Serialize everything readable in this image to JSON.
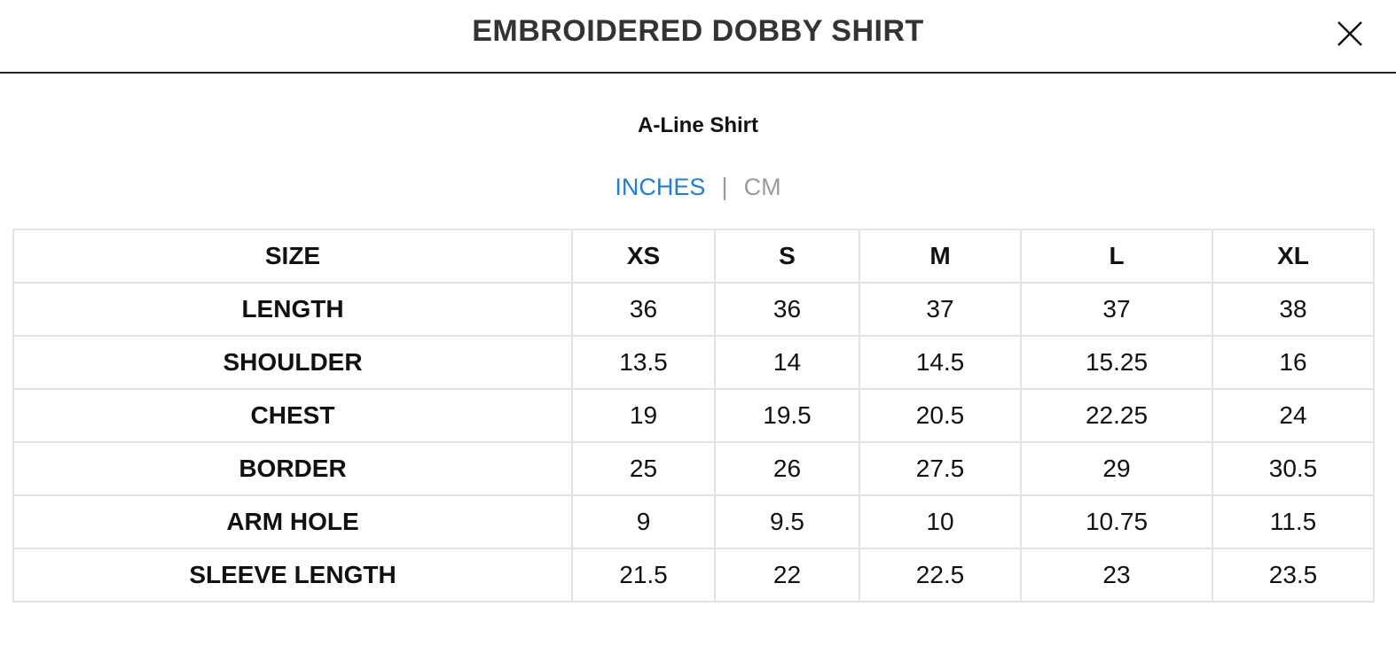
{
  "header": {
    "title": "EMBROIDERED DOBBY SHIRT",
    "close_icon": "close-icon"
  },
  "subtitle": "A-Line Shirt",
  "units": {
    "active": "INCHES",
    "separator": "|",
    "inactive": "CM",
    "active_color": "#1a7fe0",
    "inactive_color": "#9a9a9a"
  },
  "table": {
    "headers": [
      "SIZE",
      "XS",
      "S",
      "M",
      "L",
      "XL"
    ],
    "rows": [
      {
        "label": "LENGTH",
        "values": [
          "36",
          "36",
          "37",
          "37",
          "38"
        ]
      },
      {
        "label": "SHOULDER",
        "values": [
          "13.5",
          "14",
          "14.5",
          "15.25",
          "16"
        ]
      },
      {
        "label": "CHEST",
        "values": [
          "19",
          "19.5",
          "20.5",
          "22.25",
          "24"
        ]
      },
      {
        "label": "BORDER",
        "values": [
          "25",
          "26",
          "27.5",
          "29",
          "30.5"
        ]
      },
      {
        "label": "ARM HOLE",
        "values": [
          "9",
          "9.5",
          "10",
          "10.75",
          "11.5"
        ]
      },
      {
        "label": "SLEEVE LENGTH",
        "values": [
          "21.5",
          "22",
          "22.5",
          "23",
          "23.5"
        ]
      }
    ]
  }
}
